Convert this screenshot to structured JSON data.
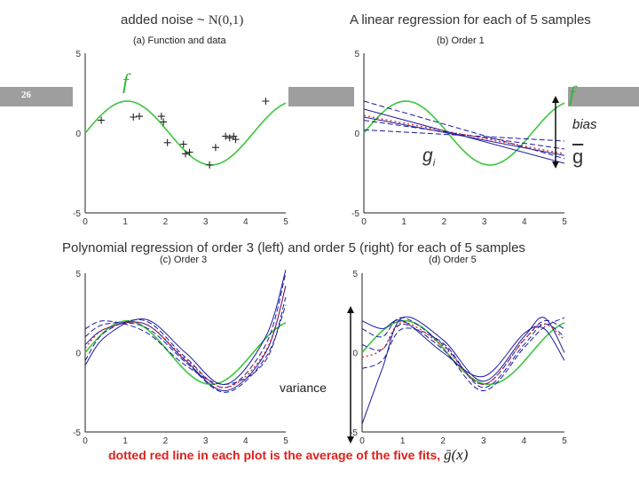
{
  "header": {
    "noise_label": "added noise ~ ",
    "noise_dist": "N(0,1)",
    "linear_title": "A linear regression for each of 5 samples"
  },
  "slide_number": "26",
  "mid_caption": "Polynomial regression of order 3 (left)  and order 5 (right) for each of 5 samples",
  "panels": {
    "a": {
      "title": "(a) Function and data"
    },
    "b": {
      "title": "(b) Order 1"
    },
    "c": {
      "title": "(c) Order 3"
    },
    "d": {
      "title": "(d) Order 5"
    }
  },
  "axis_ticks": {
    "x": [
      "0",
      "1",
      "2",
      "3",
      "4",
      "5"
    ],
    "y_top": "5",
    "y_mid": "0",
    "y_bot": "-5"
  },
  "annotations": {
    "f": "f",
    "bias": "bias",
    "g_i": "g",
    "g_i_sub": "i",
    "g_bar": "g",
    "variance": "variance"
  },
  "footer": {
    "text": "dotted red line in each plot is the average of the five fits,",
    "gbar_expr": "ḡ(x)"
  },
  "colors": {
    "true_function": "#3cc63c",
    "fits": "#1a1aa0",
    "average": "#e0201c",
    "band": "#9e9e9e"
  },
  "chart_data": [
    {
      "type": "scatter",
      "title": "(a) Function and data",
      "xlim": [
        0,
        5
      ],
      "ylim": [
        -5,
        5
      ],
      "series": [
        {
          "name": "f",
          "kind": "line",
          "function": "2*sin(1.5x)"
        },
        {
          "kind": "points",
          "x": [
            0.4,
            1.2,
            1.35,
            1.9,
            1.95,
            2.05,
            2.45,
            2.5,
            2.6,
            3.1,
            3.25,
            3.5,
            3.6,
            3.7,
            3.75,
            4.5
          ],
          "y": [
            0.8,
            1.0,
            1.05,
            1.05,
            0.7,
            -0.6,
            -0.7,
            -1.3,
            -1.2,
            -2.0,
            -0.9,
            -0.2,
            -0.3,
            -0.2,
            -0.4,
            2.0
          ]
        }
      ]
    },
    {
      "type": "line",
      "title": "(b) Order 1",
      "xlim": [
        0,
        5
      ],
      "ylim": [
        -5,
        5
      ],
      "series": [
        {
          "name": "f",
          "function": "2*sin(1.5x)"
        },
        {
          "kind": "fit",
          "x": [
            0,
            5
          ],
          "y": [
            2.0,
            -1.6
          ]
        },
        {
          "kind": "fit",
          "x": [
            0,
            5
          ],
          "y": [
            1.5,
            -1.9
          ]
        },
        {
          "kind": "fit",
          "x": [
            0,
            5
          ],
          "y": [
            0.8,
            -1.0
          ]
        },
        {
          "kind": "fit",
          "x": [
            0,
            5
          ],
          "y": [
            1.0,
            -1.4
          ]
        },
        {
          "kind": "fit",
          "x": [
            0,
            5
          ],
          "y": [
            0.2,
            -0.5
          ]
        },
        {
          "kind": "average",
          "x": [
            0,
            5
          ],
          "y": [
            1.1,
            -1.3
          ]
        }
      ]
    },
    {
      "type": "line",
      "title": "(c) Order 3",
      "xlim": [
        0,
        5
      ],
      "ylim": [
        -5,
        5
      ],
      "series": [
        {
          "name": "f",
          "function": "2*sin(1.5x)"
        },
        {
          "kind": "fit",
          "x": [
            0,
            0.5,
            1.5,
            2.5,
            3.5,
            4.5,
            5
          ],
          "y": [
            -0.5,
            1.3,
            2.0,
            -0.3,
            -2.2,
            0.5,
            5.0
          ]
        },
        {
          "kind": "fit",
          "x": [
            0,
            0.5,
            1.5,
            2.5,
            3.5,
            4.5,
            5
          ],
          "y": [
            0.5,
            1.5,
            1.8,
            -0.5,
            -2.4,
            0.0,
            4.2
          ]
        },
        {
          "kind": "fit",
          "x": [
            0,
            0.5,
            1.5,
            2.5,
            3.5,
            4.5,
            5
          ],
          "y": [
            1.5,
            2.0,
            1.3,
            -0.8,
            -2.0,
            -0.5,
            3.5
          ]
        },
        {
          "kind": "fit",
          "x": [
            0,
            0.5,
            1.5,
            2.5,
            3.5,
            4.5,
            5
          ],
          "y": [
            -0.8,
            1.0,
            2.1,
            0.0,
            -2.0,
            1.0,
            5.2
          ]
        },
        {
          "kind": "fit",
          "x": [
            0,
            0.5,
            1.5,
            2.5,
            3.5,
            4.5,
            5
          ],
          "y": [
            1.0,
            1.8,
            1.6,
            -0.6,
            -2.5,
            -0.3,
            3.0
          ]
        },
        {
          "kind": "average",
          "x": [
            0,
            0.5,
            1.5,
            2.5,
            3.5,
            4.5,
            5
          ],
          "y": [
            0.3,
            1.5,
            1.8,
            -0.4,
            -2.2,
            0.1,
            4.2
          ]
        }
      ]
    },
    {
      "type": "line",
      "title": "(d) Order 5",
      "xlim": [
        0,
        5
      ],
      "ylim": [
        -5,
        5
      ],
      "series": [
        {
          "name": "f",
          "function": "2*sin(1.5x)"
        },
        {
          "kind": "fit",
          "x": [
            0,
            0.5,
            1,
            2,
            3,
            4,
            4.5,
            5
          ],
          "y": [
            1.5,
            1.0,
            2.2,
            0.5,
            -2.0,
            0.8,
            2.0,
            1.5
          ]
        },
        {
          "kind": "fit",
          "x": [
            0,
            0.5,
            1,
            2,
            3,
            4,
            4.5,
            5
          ],
          "y": [
            -4.5,
            -1.0,
            2.2,
            0.8,
            -1.8,
            1.0,
            2.2,
            0.0
          ]
        },
        {
          "kind": "fit",
          "x": [
            0,
            0.5,
            1,
            2,
            3,
            4,
            4.5,
            5
          ],
          "y": [
            0.5,
            0.2,
            1.8,
            0.2,
            -2.4,
            0.3,
            1.6,
            2.2
          ]
        },
        {
          "kind": "fit",
          "x": [
            0,
            0.5,
            1,
            2,
            3,
            4,
            4.5,
            5
          ],
          "y": [
            2.0,
            1.5,
            2.0,
            0.0,
            -1.5,
            1.2,
            1.5,
            -0.5
          ]
        },
        {
          "kind": "fit",
          "x": [
            0,
            0.5,
            1,
            2,
            3,
            4,
            4.5,
            5
          ],
          "y": [
            -1.0,
            -0.5,
            1.5,
            0.6,
            -2.2,
            0.5,
            1.8,
            1.0
          ]
        },
        {
          "kind": "average",
          "x": [
            0,
            0.5,
            1,
            2,
            3,
            4,
            4.5,
            5
          ],
          "y": [
            -0.3,
            0.2,
            1.9,
            0.4,
            -2.0,
            0.8,
            1.8,
            0.8
          ]
        }
      ]
    }
  ]
}
